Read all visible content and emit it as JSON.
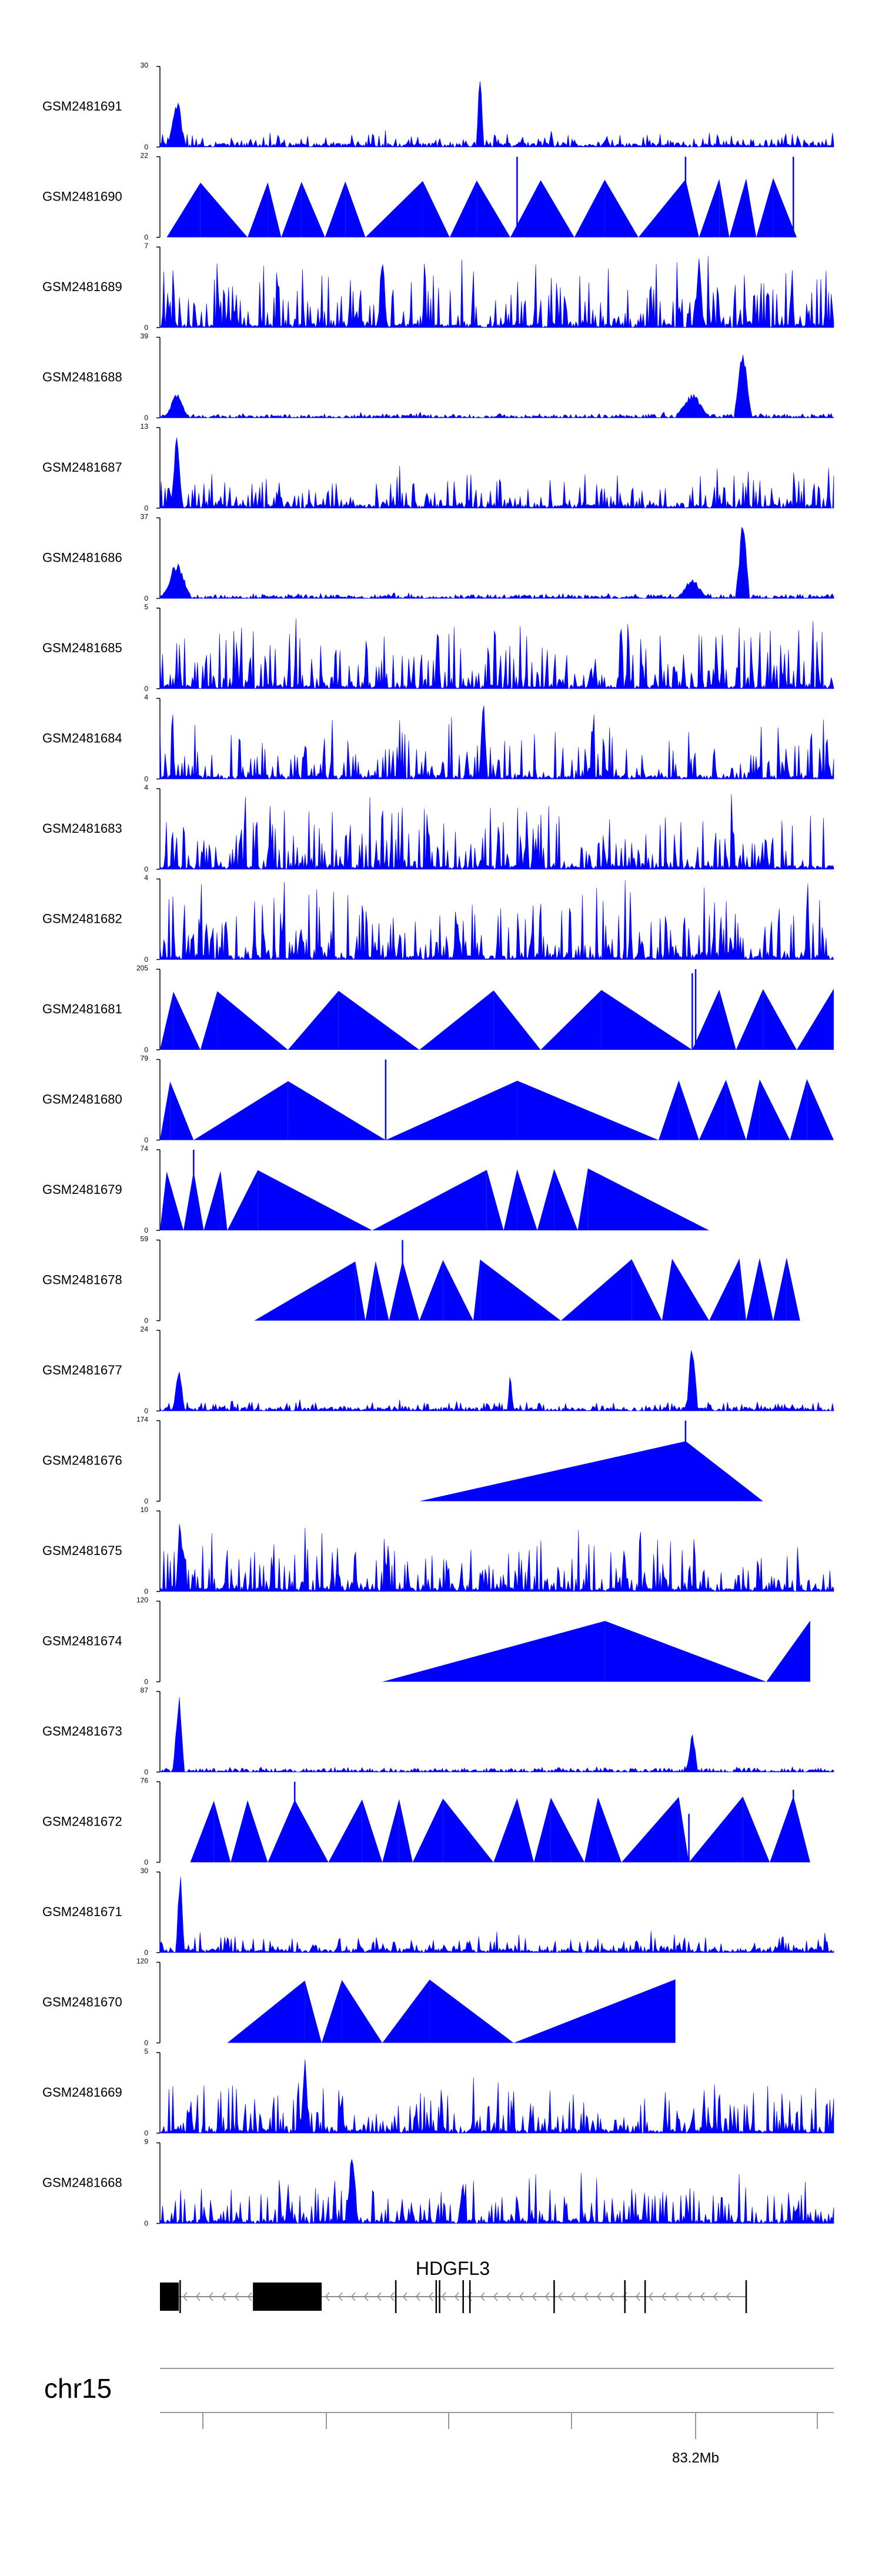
{
  "chart_data": {
    "type": "area",
    "description_type": "genome-browser-coverage-tracks",
    "fill_color": "#0000ff",
    "axis_color": "#000000",
    "tracks": [
      {
        "name": "GSM2481691",
        "ymax": 30,
        "ymin": 0,
        "kind": "dense",
        "level": 0.12,
        "peaks": [
          [
            0.025,
            0.62,
            0.006
          ],
          [
            0.475,
            1.0,
            0.0025
          ]
        ]
      },
      {
        "name": "GSM2481690",
        "ymax": 22,
        "ymin": 0,
        "kind": "triangles",
        "apexes": [
          0.01,
          0.06,
          0.13,
          0.16,
          0.18,
          0.21,
          0.245,
          0.275,
          0.305,
          0.39,
          0.43,
          0.47,
          0.52,
          0.565,
          0.615,
          0.66,
          0.71,
          0.78,
          0.8,
          0.83,
          0.845,
          0.87,
          0.885,
          0.91,
          0.945
        ],
        "spikes": [
          [
            0.53,
            1.0
          ],
          [
            0.78,
            1.0
          ],
          [
            0.94,
            1.0
          ]
        ]
      },
      {
        "name": "GSM2481689",
        "ymax": 7,
        "ymin": 0,
        "kind": "dense",
        "level": 0.5,
        "peaks": [
          [
            0.8,
            1.0,
            0.003
          ],
          [
            0.33,
            0.9,
            0.003
          ]
        ]
      },
      {
        "name": "GSM2481688",
        "ymax": 39,
        "ymin": 0,
        "kind": "dense",
        "level": 0.04,
        "peaks": [
          [
            0.025,
            0.3,
            0.008
          ],
          [
            0.79,
            0.3,
            0.012
          ],
          [
            0.865,
            0.85,
            0.006
          ]
        ]
      },
      {
        "name": "GSM2481687",
        "ymax": 13,
        "ymin": 0,
        "kind": "dense",
        "level": 0.3,
        "peaks": [
          [
            0.025,
            0.95,
            0.004
          ]
        ]
      },
      {
        "name": "GSM2481686",
        "ymax": 37,
        "ymin": 0,
        "kind": "dense",
        "level": 0.04,
        "peaks": [
          [
            0.025,
            0.45,
            0.01
          ],
          [
            0.79,
            0.25,
            0.01
          ],
          [
            0.865,
            0.95,
            0.005
          ]
        ]
      },
      {
        "name": "GSM2481685",
        "ymax": 5,
        "ymin": 0,
        "kind": "dense",
        "level": 0.5,
        "peaks": []
      },
      {
        "name": "GSM2481684",
        "ymax": 4,
        "ymin": 0,
        "kind": "dense",
        "level": 0.45,
        "peaks": [
          [
            0.48,
            0.95,
            0.003
          ]
        ]
      },
      {
        "name": "GSM2481683",
        "ymax": 4,
        "ymin": 0,
        "kind": "dense",
        "level": 0.55,
        "peaks": []
      },
      {
        "name": "GSM2481682",
        "ymax": 4,
        "ymin": 0,
        "kind": "dense",
        "level": 0.55,
        "peaks": []
      },
      {
        "name": "GSM2481681",
        "ymax": 205,
        "ymin": 0,
        "kind": "triangles",
        "apexes": [
          0.0,
          0.02,
          0.06,
          0.085,
          0.19,
          0.265,
          0.385,
          0.495,
          0.565,
          0.655,
          0.79,
          0.83,
          0.855,
          0.895,
          0.945,
          1.0
        ],
        "spikes": [
          [
            0.79,
            0.95
          ],
          [
            0.795,
            1.0
          ],
          [
            0.83,
            0.5
          ]
        ]
      },
      {
        "name": "GSM2481680",
        "ymax": 79,
        "ymin": 0,
        "kind": "triangles",
        "apexes": [
          0.0,
          0.015,
          0.05,
          0.19,
          0.335,
          0.53,
          0.74,
          0.77,
          0.8,
          0.84,
          0.87,
          0.89,
          0.935,
          0.96,
          1.0
        ],
        "spikes": [
          [
            0.335,
            1.0
          ]
        ]
      },
      {
        "name": "GSM2481679",
        "ymax": 74,
        "ymin": 0,
        "kind": "triangles",
        "apexes": [
          0.0,
          0.01,
          0.035,
          0.05,
          0.065,
          0.09,
          0.1,
          0.145,
          0.315,
          0.485,
          0.51,
          0.53,
          0.56,
          0.585,
          0.62,
          0.635,
          0.815
        ],
        "spikes": [
          [
            0.05,
            1.0
          ]
        ]
      },
      {
        "name": "GSM2481678",
        "ymax": 59,
        "ymin": 0,
        "kind": "triangles",
        "apexes": [
          0.14,
          0.29,
          0.305,
          0.32,
          0.34,
          0.36,
          0.385,
          0.42,
          0.465,
          0.475,
          0.595,
          0.7,
          0.745,
          0.76,
          0.815,
          0.86,
          0.87,
          0.89,
          0.91,
          0.93,
          0.95
        ],
        "spikes": [
          [
            0.36,
            1.0
          ]
        ]
      },
      {
        "name": "GSM2481677",
        "ymax": 24,
        "ymin": 0,
        "kind": "dense",
        "level": 0.08,
        "peaks": [
          [
            0.028,
            0.55,
            0.004
          ],
          [
            0.52,
            0.5,
            0.002
          ],
          [
            0.79,
            0.92,
            0.004
          ]
        ]
      },
      {
        "name": "GSM2481676",
        "ymax": 174,
        "ymin": 0,
        "kind": "triangles",
        "apexes": [
          0.385,
          0.78,
          0.895
        ],
        "spikes": [
          [
            0.78,
            1.0
          ]
        ]
      },
      {
        "name": "GSM2481675",
        "ymax": 10,
        "ymin": 0,
        "kind": "dense",
        "level": 0.45,
        "peaks": [
          [
            0.03,
            0.95,
            0.003
          ]
        ]
      },
      {
        "name": "GSM2481674",
        "ymax": 120,
        "ymin": 0,
        "kind": "triangles",
        "apexes": [
          0.33,
          0.66,
          0.9,
          0.965
        ],
        "spikes": []
      },
      {
        "name": "GSM2481673",
        "ymax": 87,
        "ymin": 0,
        "kind": "dense",
        "level": 0.04,
        "peaks": [
          [
            0.028,
            0.95,
            0.004
          ],
          [
            0.79,
            0.5,
            0.004
          ]
        ]
      },
      {
        "name": "GSM2481672",
        "ymax": 76,
        "ymin": 0,
        "kind": "triangles",
        "apexes": [
          0.045,
          0.08,
          0.105,
          0.13,
          0.16,
          0.2,
          0.25,
          0.3,
          0.33,
          0.355,
          0.375,
          0.42,
          0.495,
          0.53,
          0.555,
          0.58,
          0.63,
          0.65,
          0.685,
          0.77,
          0.785,
          0.865,
          0.905,
          0.94,
          0.965
        ],
        "spikes": [
          [
            0.2,
            1.0
          ],
          [
            0.53,
            0.6
          ],
          [
            0.785,
            0.6
          ],
          [
            0.94,
            0.9
          ]
        ]
      },
      {
        "name": "GSM2481671",
        "ymax": 30,
        "ymin": 0,
        "kind": "dense",
        "level": 0.15,
        "peaks": [
          [
            0.03,
            1.0,
            0.003
          ]
        ]
      },
      {
        "name": "GSM2481670",
        "ymax": 120,
        "ymin": 0,
        "kind": "triangles",
        "apexes": [
          0.1,
          0.215,
          0.24,
          0.27,
          0.33,
          0.4,
          0.525,
          0.765
        ],
        "spikes": []
      },
      {
        "name": "GSM2481669",
        "ymax": 5,
        "ymin": 0,
        "kind": "dense",
        "level": 0.4,
        "peaks": [
          [
            0.215,
            0.95,
            0.003
          ]
        ]
      },
      {
        "name": "GSM2481668",
        "ymax": 9,
        "ymin": 0,
        "kind": "dense",
        "level": 0.35,
        "peaks": [
          [
            0.285,
            0.95,
            0.004
          ]
        ]
      }
    ],
    "gene": {
      "name": "HDGFL3",
      "strand": "-",
      "blocks": [
        [
          0.0,
          0.028
        ],
        [
          0.138,
          0.24
        ]
      ],
      "exon_lines": [
        0.03,
        0.35,
        0.41,
        0.415,
        0.45,
        0.46,
        0.585,
        0.69,
        0.72,
        0.87
      ]
    },
    "axis": {
      "chromosome": "chr15",
      "labeled_tick": "83.2Mb",
      "tick_count": 6
    }
  }
}
